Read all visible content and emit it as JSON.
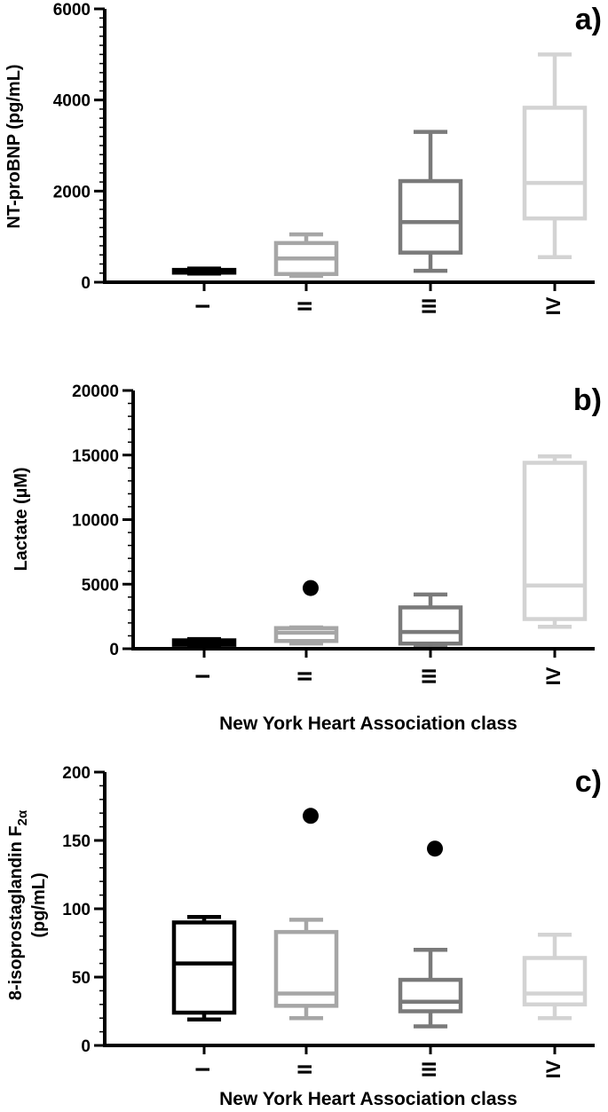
{
  "chart_data": [
    {
      "type": "box",
      "panel_label": "a)",
      "ylabel": "NT-proBNP (pg/mL)",
      "xlabel": "",
      "ylim": [
        0,
        6000
      ],
      "yticks": [
        0,
        2000,
        4000,
        6000
      ],
      "ytick_labels": [
        "0",
        "2000",
        "4000",
        "6000"
      ],
      "yminor_step": 200,
      "categories": [
        "I",
        "II",
        "III",
        "IV"
      ],
      "colors": [
        "#000000",
        "#a6a6a6",
        "#7a7a7a",
        "#d3d3d3"
      ],
      "boxes": [
        {
          "whisker_low": 190,
          "q1": 210,
          "median": 240,
          "q3": 270,
          "whisker_high": 300,
          "outliers": []
        },
        {
          "whisker_low": 140,
          "q1": 180,
          "median": 520,
          "q3": 860,
          "whisker_high": 1050,
          "outliers": []
        },
        {
          "whisker_low": 250,
          "q1": 650,
          "median": 1320,
          "q3": 2220,
          "whisker_high": 3300,
          "outliers": []
        },
        {
          "whisker_low": 550,
          "q1": 1400,
          "median": 2180,
          "q3": 3830,
          "whisker_high": 5000,
          "outliers": []
        }
      ]
    },
    {
      "type": "box",
      "panel_label": "b)",
      "ylabel": "Lactate (µM)",
      "xlabel": "New York Heart Association class",
      "ylim": [
        0,
        20000
      ],
      "yticks": [
        0,
        5000,
        10000,
        15000,
        20000
      ],
      "ytick_labels": [
        "0",
        "5000",
        "10000",
        "15000",
        "20000"
      ],
      "yminor_step": 1000,
      "categories": [
        "I",
        "II",
        "III",
        "IV"
      ],
      "colors": [
        "#000000",
        "#a6a6a6",
        "#7a7a7a",
        "#d3d3d3"
      ],
      "boxes": [
        {
          "whisker_low": 250,
          "q1": 300,
          "median": 450,
          "q3": 650,
          "whisker_high": 750,
          "outliers": []
        },
        {
          "whisker_low": 400,
          "q1": 600,
          "median": 1250,
          "q3": 1600,
          "whisker_high": 1650,
          "outliers": [
            4700
          ]
        },
        {
          "whisker_low": 100,
          "q1": 400,
          "median": 1300,
          "q3": 3200,
          "whisker_high": 4200,
          "outliers": []
        },
        {
          "whisker_low": 1700,
          "q1": 2300,
          "median": 4900,
          "q3": 14400,
          "whisker_high": 14900,
          "outliers": []
        }
      ]
    },
    {
      "type": "box",
      "panel_label": "c)",
      "ylabel_line1": "8-isoprostaglandin F",
      "ylabel_sub": "2α",
      "ylabel_line2": "(pg/mL)",
      "xlabel": "New York Heart Association class",
      "ylim": [
        0,
        200
      ],
      "yticks": [
        0,
        50,
        100,
        150,
        200
      ],
      "ytick_labels": [
        "0",
        "50",
        "100",
        "150",
        "200"
      ],
      "yminor_step": 10,
      "categories": [
        "I",
        "II",
        "III",
        "IV"
      ],
      "colors": [
        "#000000",
        "#a6a6a6",
        "#7a7a7a",
        "#d3d3d3"
      ],
      "boxes": [
        {
          "whisker_low": 19,
          "q1": 24,
          "median": 60,
          "q3": 90,
          "whisker_high": 94,
          "outliers": []
        },
        {
          "whisker_low": 20,
          "q1": 29,
          "median": 38,
          "q3": 83,
          "whisker_high": 92,
          "outliers": [
            168
          ]
        },
        {
          "whisker_low": 14,
          "q1": 25,
          "median": 32,
          "q3": 48,
          "whisker_high": 70,
          "outliers": [
            144
          ]
        },
        {
          "whisker_low": 20,
          "q1": 30,
          "median": 38,
          "q3": 64,
          "whisker_high": 81,
          "outliers": []
        }
      ]
    }
  ]
}
